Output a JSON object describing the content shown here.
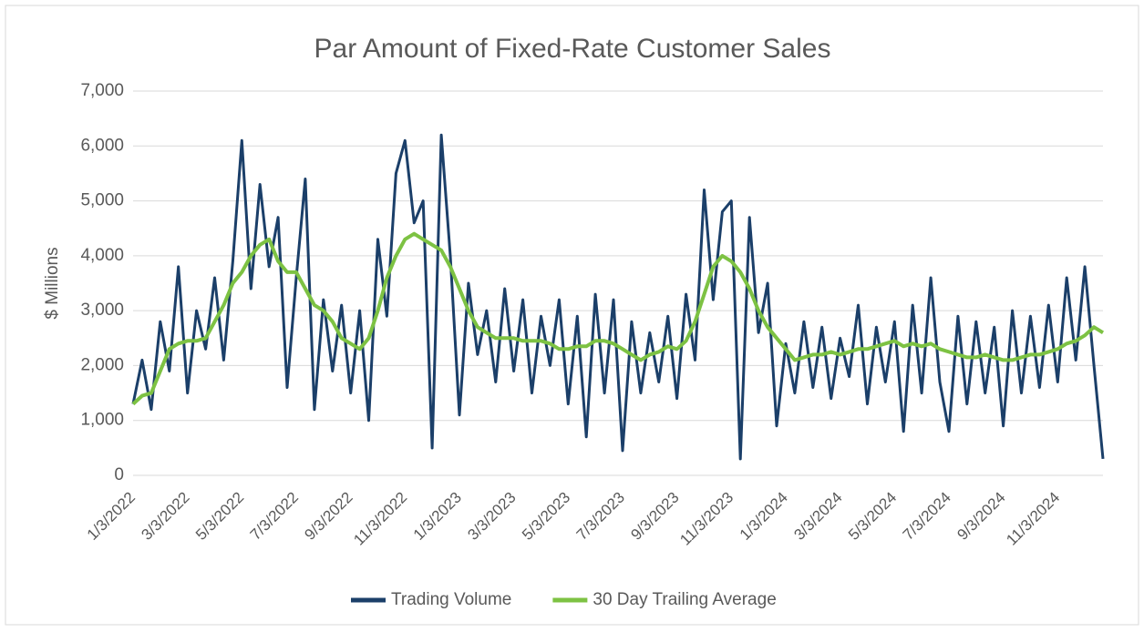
{
  "chart_data": {
    "type": "line",
    "title": "Par Amount of Fixed-Rate Customer Sales",
    "y_label": "$ Millions",
    "categories": [
      "1/3/2022",
      null,
      null,
      null,
      null,
      null,
      "3/3/2022",
      null,
      null,
      null,
      null,
      null,
      "5/3/2022",
      null,
      null,
      null,
      null,
      null,
      "7/3/2022",
      null,
      null,
      null,
      null,
      null,
      "9/3/2022",
      null,
      null,
      null,
      null,
      null,
      "11/3/2022",
      null,
      null,
      null,
      null,
      null,
      "1/3/2023",
      null,
      null,
      null,
      null,
      null,
      "3/3/2023",
      null,
      null,
      null,
      null,
      null,
      "5/3/2023",
      null,
      null,
      null,
      null,
      null,
      "7/3/2023",
      null,
      null,
      null,
      null,
      null,
      "9/3/2023",
      null,
      null,
      null,
      null,
      null,
      "11/3/2023",
      null,
      null,
      null,
      null,
      null,
      "1/3/2024",
      null,
      null,
      null,
      null,
      null,
      "3/3/2024",
      null,
      null,
      null,
      null,
      null,
      "5/3/2024",
      null,
      null,
      null,
      null,
      null,
      "7/3/2024",
      null,
      null,
      null,
      null,
      null,
      "9/3/2024",
      null,
      null,
      null,
      null,
      null,
      "11/3/2024",
      null,
      null,
      null,
      null,
      null
    ],
    "series": [
      {
        "name": "Trading Volume",
        "color": "#1b3f69",
        "values": [
          1300,
          2100,
          1200,
          2800,
          1900,
          3800,
          1500,
          3000,
          2300,
          3600,
          2100,
          3900,
          6100,
          3400,
          5300,
          3800,
          4700,
          1600,
          3600,
          5400,
          1200,
          3200,
          1900,
          3100,
          1500,
          3000,
          1000,
          4300,
          2900,
          5500,
          6100,
          4600,
          5000,
          500,
          6200,
          4000,
          1100,
          3500,
          2200,
          3000,
          1700,
          3400,
          1900,
          3200,
          1500,
          2900,
          2000,
          3200,
          1300,
          2900,
          700,
          3300,
          1500,
          3200,
          450,
          2800,
          1500,
          2600,
          1700,
          2900,
          1400,
          3300,
          2100,
          5200,
          3200,
          4800,
          5000,
          300,
          4700,
          2600,
          3500,
          900,
          2400,
          1500,
          2800,
          1600,
          2700,
          1400,
          2500,
          1800,
          3100,
          1300,
          2700,
          1700,
          2800,
          800,
          3100,
          1500,
          3600,
          1700,
          800,
          2900,
          1300,
          2800,
          1500,
          2700,
          900,
          3000,
          1500,
          2900,
          1600,
          3100,
          1700,
          3600,
          2100,
          3800,
          2000,
          300
        ]
      },
      {
        "name": "30 Day Trailing Average",
        "color": "#7dc243",
        "values": [
          1300,
          1450,
          1500,
          1900,
          2300,
          2400,
          2450,
          2450,
          2500,
          2800,
          3100,
          3500,
          3700,
          4000,
          4200,
          4300,
          3900,
          3700,
          3700,
          3400,
          3100,
          3000,
          2800,
          2500,
          2400,
          2300,
          2500,
          3000,
          3600,
          4000,
          4300,
          4400,
          4300,
          4200,
          4100,
          3800,
          3400,
          3000,
          2700,
          2600,
          2500,
          2500,
          2500,
          2450,
          2450,
          2450,
          2400,
          2300,
          2300,
          2350,
          2350,
          2450,
          2450,
          2400,
          2300,
          2200,
          2100,
          2200,
          2250,
          2350,
          2300,
          2450,
          2800,
          3300,
          3800,
          4000,
          3900,
          3700,
          3400,
          3000,
          2700,
          2500,
          2300,
          2100,
          2150,
          2200,
          2200,
          2250,
          2200,
          2250,
          2300,
          2300,
          2350,
          2400,
          2450,
          2350,
          2400,
          2350,
          2400,
          2300,
          2250,
          2200,
          2150,
          2150,
          2200,
          2150,
          2100,
          2100,
          2150,
          2200,
          2200,
          2250,
          2300,
          2400,
          2450,
          2550,
          2700,
          2600
        ]
      }
    ],
    "ylim": [
      0,
      7000
    ],
    "yticks": [
      0,
      {
        "value": 1000,
        "label": "1,000"
      },
      {
        "value": 2000,
        "label": "2,000"
      },
      {
        "value": 3000,
        "label": "3,000"
      },
      {
        "value": 4000,
        "label": "4,000"
      },
      {
        "value": 5000,
        "label": "5,000"
      },
      {
        "value": 6000,
        "label": "6,000"
      },
      {
        "value": 7000,
        "label": "7,000"
      }
    ],
    "grid": true,
    "legend": "bottom"
  }
}
